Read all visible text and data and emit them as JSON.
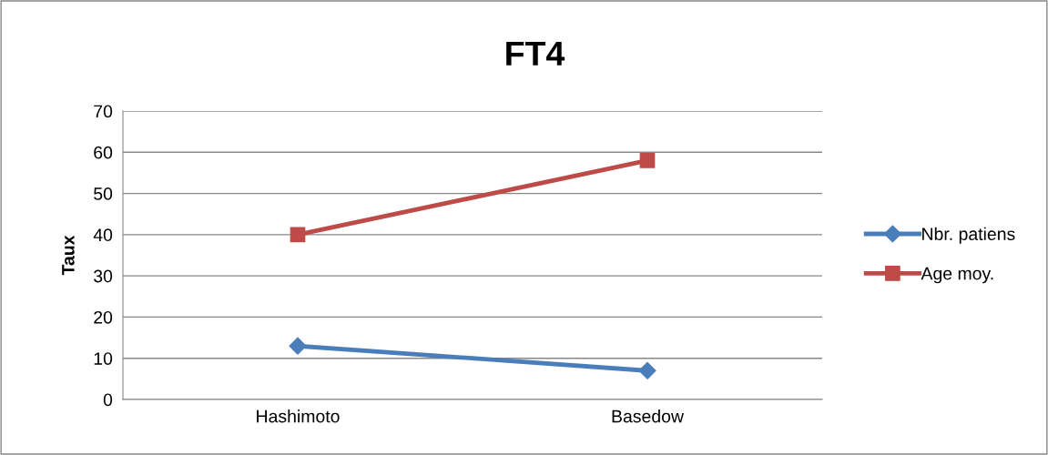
{
  "chart_data": {
    "type": "line",
    "title": "FT4",
    "ylabel": "Taux",
    "categories": [
      "Hashimoto",
      "Basedow"
    ],
    "series": [
      {
        "name": "Nbr. patiens",
        "color": "#4a7ebb",
        "marker": "diamond",
        "values": [
          13,
          7
        ]
      },
      {
        "name": "Age moy.",
        "color": "#be4b48",
        "marker": "square",
        "values": [
          40,
          58
        ]
      }
    ],
    "ylim": [
      0,
      70
    ],
    "yticks": [
      0,
      10,
      20,
      30,
      40,
      50,
      60,
      70
    ],
    "grid": "y",
    "legend": "right",
    "line_style": "solid"
  }
}
